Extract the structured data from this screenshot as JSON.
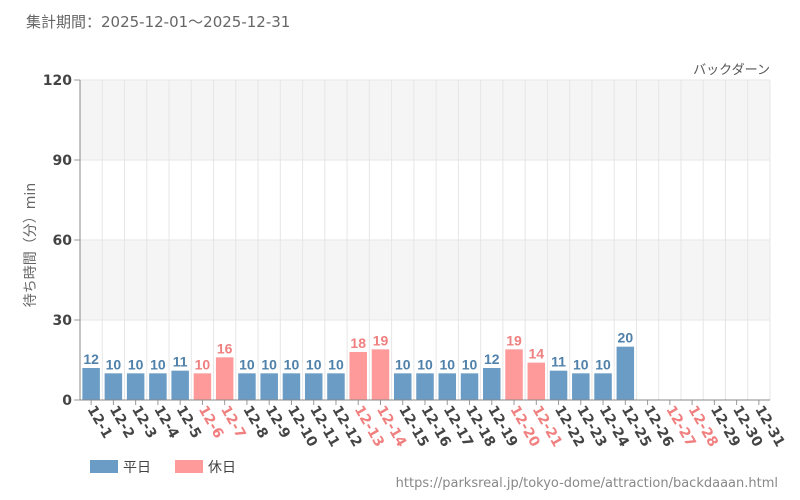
{
  "period_text": "集計期間：2025-12-01～2025-12-31",
  "attraction_name": "バックダーン",
  "source_url": "https://parksreal.jp/tokyo-dome/attraction/backdaaan.html",
  "colors": {
    "weekday": "#6a9cc5",
    "holiday": "#ff9a9a",
    "weekday_text": "#4f81aa",
    "holiday_text": "#f07f7f",
    "band": "#f5f5f5",
    "grid": "#e6e6e6"
  },
  "chart_data": {
    "type": "bar",
    "title": "",
    "xlabel": "",
    "ylabel": "待ち時間（分）min",
    "ylim": [
      0,
      120
    ],
    "yticks": [
      0,
      30,
      60,
      90,
      120
    ],
    "legend": [
      {
        "name": "平日",
        "kind": "weekday"
      },
      {
        "name": "休日",
        "kind": "holiday"
      }
    ],
    "legend_position": "bottom-left",
    "categories": [
      "12-1",
      "12-2",
      "12-3",
      "12-4",
      "12-5",
      "12-6",
      "12-7",
      "12-8",
      "12-9",
      "12-10",
      "12-11",
      "12-12",
      "12-13",
      "12-14",
      "12-15",
      "12-16",
      "12-17",
      "12-18",
      "12-19",
      "12-20",
      "12-21",
      "12-22",
      "12-23",
      "12-24",
      "12-25",
      "12-26",
      "12-27",
      "12-28",
      "12-29",
      "12-30",
      "12-31"
    ],
    "values": [
      12,
      10,
      10,
      10,
      11,
      10,
      16,
      10,
      10,
      10,
      10,
      10,
      18,
      19,
      10,
      10,
      10,
      10,
      12,
      19,
      14,
      11,
      10,
      10,
      20,
      null,
      null,
      null,
      null,
      null,
      null
    ],
    "day_type": [
      "weekday",
      "weekday",
      "weekday",
      "weekday",
      "weekday",
      "holiday",
      "holiday",
      "weekday",
      "weekday",
      "weekday",
      "weekday",
      "weekday",
      "holiday",
      "holiday",
      "weekday",
      "weekday",
      "weekday",
      "weekday",
      "weekday",
      "holiday",
      "holiday",
      "weekday",
      "weekday",
      "weekday",
      "weekday",
      "weekday",
      "holiday",
      "holiday",
      "weekday",
      "weekday",
      "weekday"
    ]
  }
}
